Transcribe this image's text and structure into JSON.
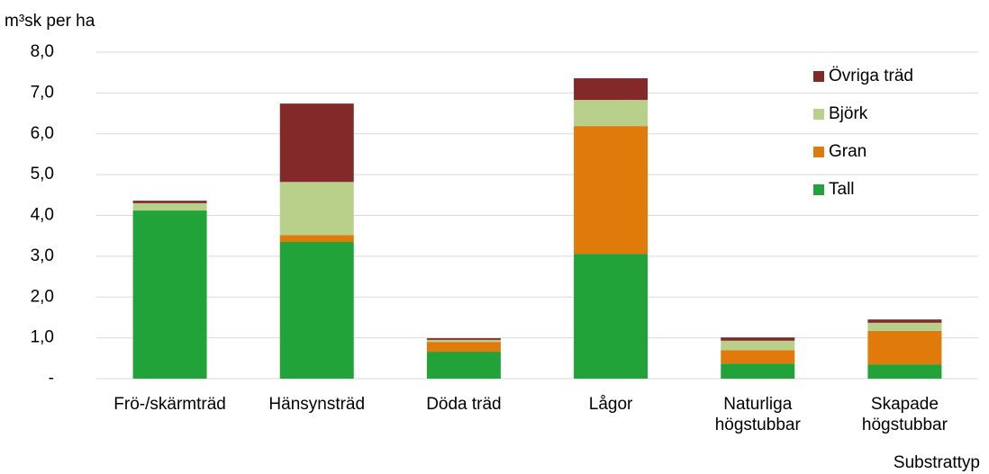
{
  "chart_data": {
    "type": "stacked_bar",
    "y_axis_label": "m³sk per ha",
    "x_axis_label": "Substrattyp",
    "categories": [
      [
        "Frö-/skärmträd"
      ],
      [
        "Hänsynsträd"
      ],
      [
        "Döda träd"
      ],
      [
        "Lågor"
      ],
      [
        "Naturliga",
        "högstubbar"
      ],
      [
        "Skapade",
        "högstubbar"
      ]
    ],
    "series": [
      {
        "name": "Tall",
        "color": "#22a33a",
        "values": [
          4.12,
          3.35,
          0.66,
          3.06,
          0.37,
          0.35
        ]
      },
      {
        "name": "Gran",
        "color": "#e07b0b",
        "values": [
          0,
          0.17,
          0.24,
          3.13,
          0.33,
          0.82
        ]
      },
      {
        "name": "Björk",
        "color": "#b8d08a",
        "values": [
          0.18,
          1.3,
          0.05,
          0.64,
          0.23,
          0.2
        ]
      },
      {
        "name": "Övriga träd",
        "color": "#832929",
        "values": [
          0.06,
          1.92,
          0.04,
          0.53,
          0.08,
          0.08
        ]
      }
    ],
    "ylim": [
      0,
      8
    ],
    "yticks": [
      {
        "value": 0,
        "label": "-"
      },
      {
        "value": 1,
        "label": "1,0"
      },
      {
        "value": 2,
        "label": "2,0"
      },
      {
        "value": 3,
        "label": "3,0"
      },
      {
        "value": 4,
        "label": "4,0"
      },
      {
        "value": 5,
        "label": "5,0"
      },
      {
        "value": 6,
        "label": "6,0"
      },
      {
        "value": 7,
        "label": "7,0"
      },
      {
        "value": 8,
        "label": "8,0"
      }
    ],
    "grid": true,
    "legend": "upper right"
  }
}
